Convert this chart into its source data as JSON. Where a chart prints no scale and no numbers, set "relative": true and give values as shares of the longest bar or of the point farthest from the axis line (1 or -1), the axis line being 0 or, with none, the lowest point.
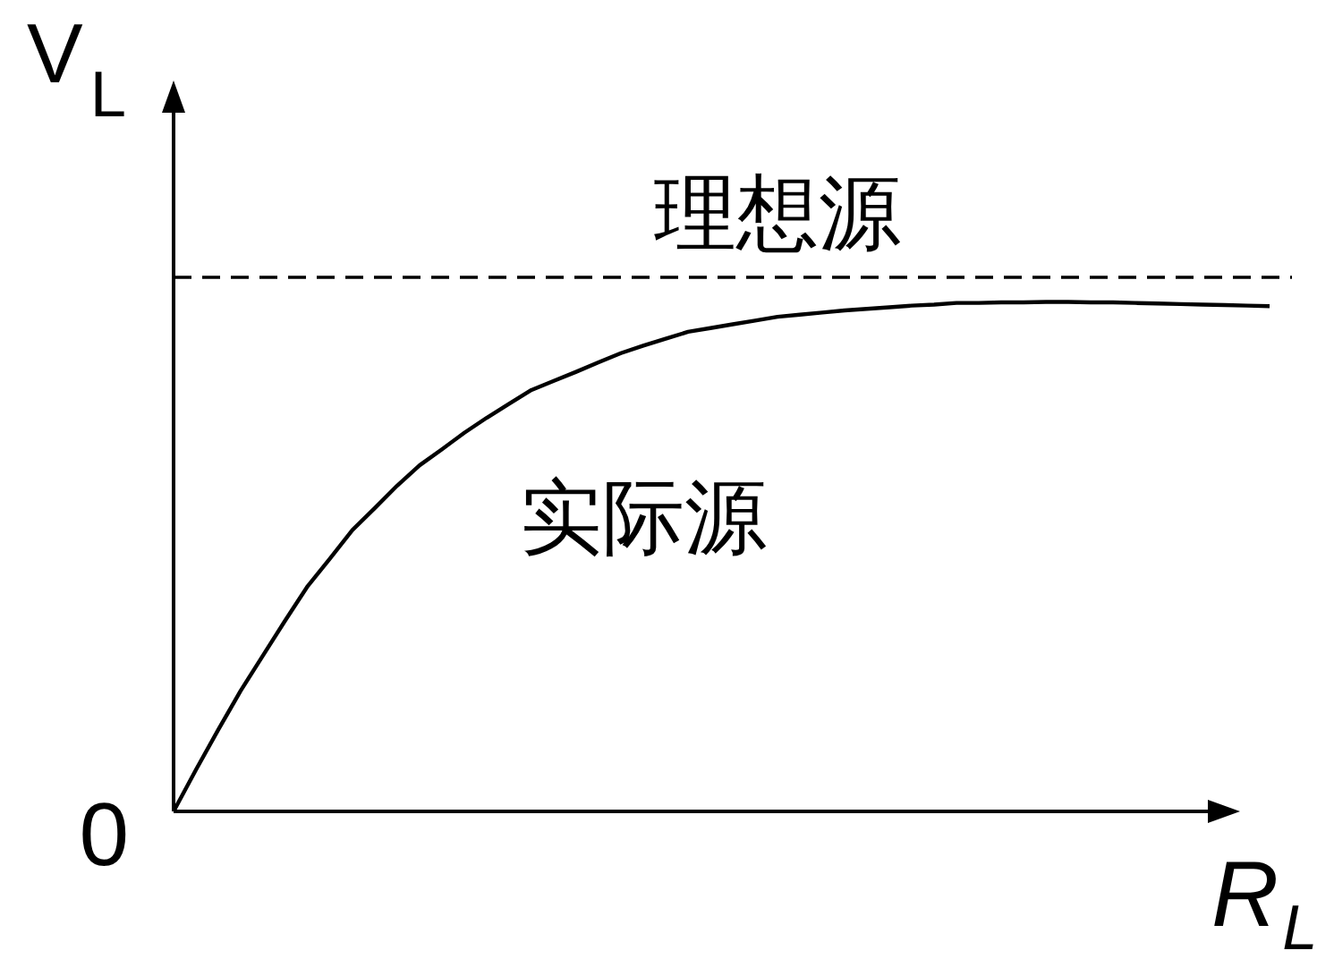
{
  "chart_data": {
    "type": "line",
    "relative": true,
    "xlabel": "R$_{L}$",
    "ylabel": "V$_{L}$",
    "annotations": [
      "0"
    ],
    "categories": [
      null,
      null,
      null,
      null,
      null,
      null,
      null,
      null,
      null,
      null,
      null,
      null,
      null,
      null,
      null,
      null,
      null,
      null,
      null,
      null,
      null,
      null,
      null,
      null,
      null,
      null,
      null,
      null,
      null,
      null,
      null,
      null,
      null,
      null,
      null,
      null,
      null,
      null,
      null,
      null,
      null,
      null,
      null,
      null,
      null,
      null,
      null,
      null,
      null,
      null,
      null
    ],
    "series": [
      {
        "name": "理想源",
        "color": "#000000",
        "line_style": "dashed",
        "values": [
          1,
          1,
          1,
          1,
          1,
          1,
          1,
          1,
          1,
          1,
          1,
          1,
          1,
          1,
          1,
          1,
          1,
          1,
          1,
          1,
          1,
          1,
          1,
          1,
          1,
          1,
          1,
          1,
          1,
          1,
          1,
          1,
          1,
          1,
          1,
          1,
          1,
          1,
          1,
          1,
          1,
          1,
          1,
          1,
          1,
          1,
          1,
          1,
          1,
          1,
          1
        ]
      },
      {
        "name": "实际源",
        "color": "#000000",
        "line_style": "solid",
        "values": [
          0,
          0.078,
          0.153,
          0.226,
          0.292,
          0.358,
          0.422,
          0.474,
          0.527,
          0.568,
          0.61,
          0.648,
          0.678,
          0.709,
          0.737,
          0.763,
          0.789,
          0.806,
          0.823,
          0.841,
          0.858,
          0.872,
          0.885,
          0.898,
          0.905,
          0.912,
          0.919,
          0.926,
          0.93,
          0.934,
          0.938,
          0.941,
          0.944,
          0.947,
          0.949,
          0.952,
          0.952,
          0.953,
          0.953,
          0.954,
          0.954,
          0.953,
          0.953,
          0.952,
          0.951,
          0.95,
          0.949,
          0.948,
          0.947,
          0.946,
          null
        ]
      }
    ]
  }
}
